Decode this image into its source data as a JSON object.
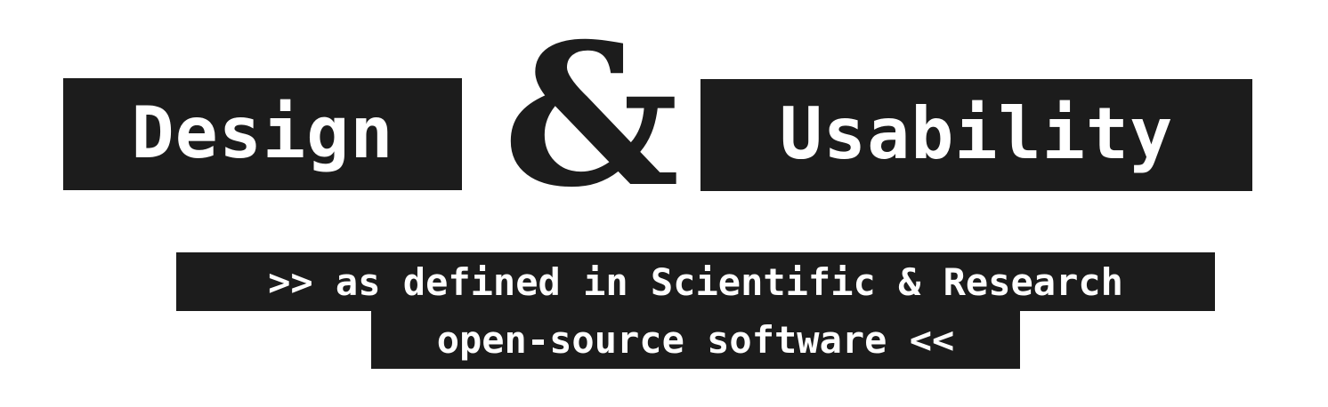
{
  "title": {
    "word1": "Design",
    "ampersand": "&",
    "word2": "Usability"
  },
  "subtitle": {
    "line1": ">> as defined in Scientific & Research",
    "line2": "open-source software <<"
  },
  "colors": {
    "block_background": "#1c1c1c",
    "block_text": "#ffffff",
    "page_background": "#ffffff"
  }
}
